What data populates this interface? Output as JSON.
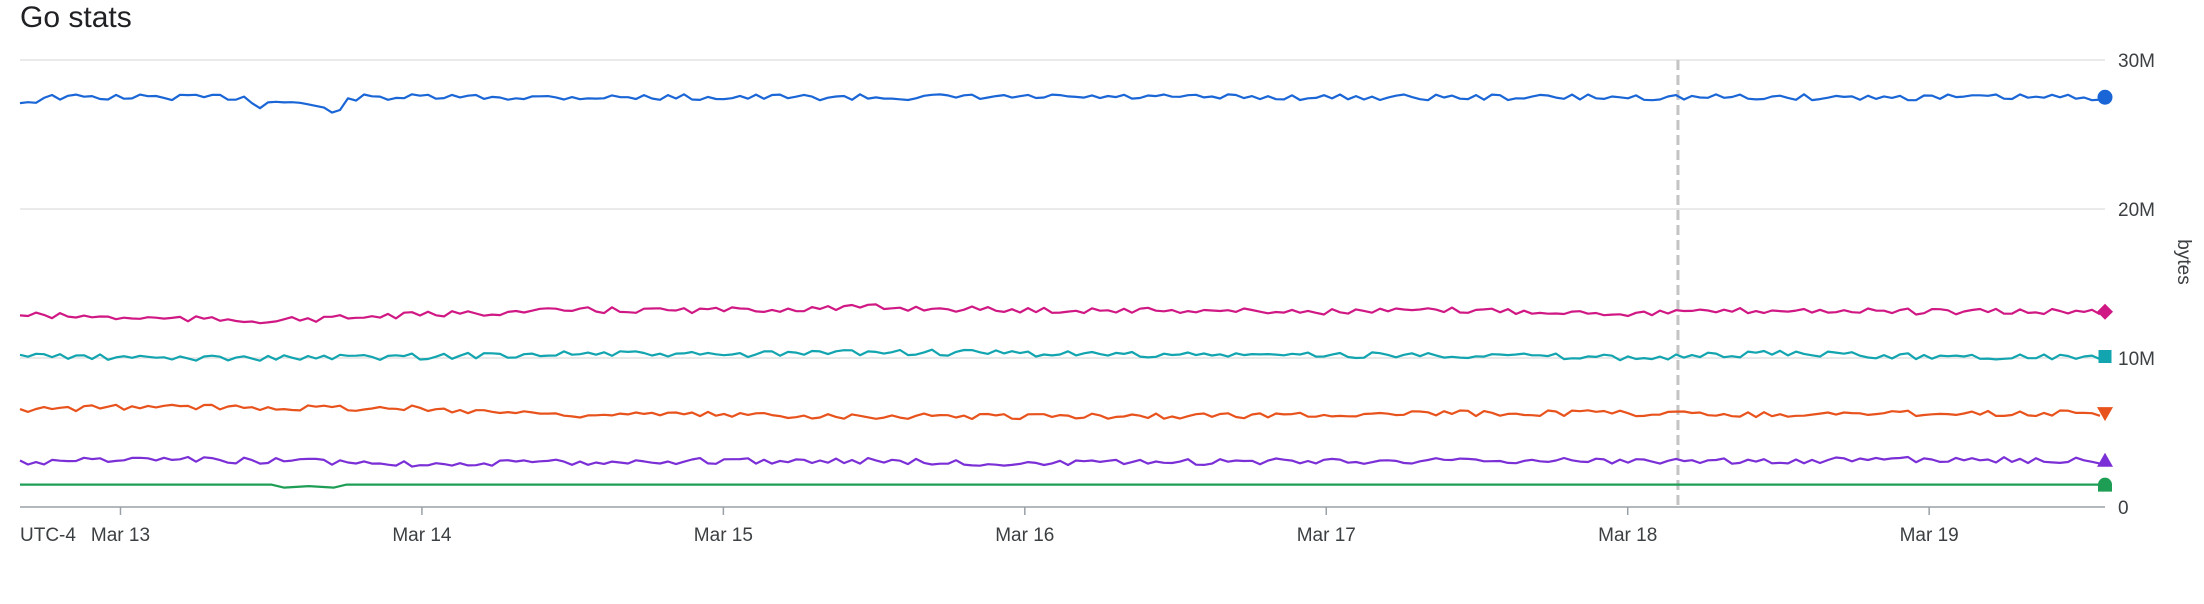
{
  "chart_data": {
    "type": "line",
    "title": "Go stats",
    "ylabel": "bytes",
    "timezone": "UTC-4",
    "ylim": [
      0,
      30000000
    ],
    "yticks": [
      {
        "value": 0,
        "label": "0"
      },
      {
        "value": 10000000,
        "label": "10M"
      },
      {
        "value": 20000000,
        "label": "20M"
      },
      {
        "value": 30000000,
        "label": "30M"
      }
    ],
    "xlim": [
      "2024-03-12T16:00",
      "2024-03-19T14:00"
    ],
    "xticks": [
      {
        "value": "2024-03-13T00:00",
        "label": "Mar 13"
      },
      {
        "value": "2024-03-14T00:00",
        "label": "Mar 14"
      },
      {
        "value": "2024-03-15T00:00",
        "label": "Mar 15"
      },
      {
        "value": "2024-03-16T00:00",
        "label": "Mar 16"
      },
      {
        "value": "2024-03-17T00:00",
        "label": "Mar 17"
      },
      {
        "value": "2024-03-18T00:00",
        "label": "Mar 18"
      },
      {
        "value": "2024-03-19T00:00",
        "label": "Mar 19"
      }
    ],
    "cursor_x": "2024-03-18T04:00",
    "grid": true,
    "series": [
      {
        "color": "#1a66d6",
        "marker": "circle",
        "x": [
          "2024-03-12T16:00",
          "2024-03-12T17:00",
          "2024-03-12T18:00",
          "2024-03-13T10:00",
          "2024-03-13T11:00",
          "2024-03-13T12:00",
          "2024-03-13T14:00",
          "2024-03-13T17:00",
          "2024-03-13T18:00",
          "2024-03-13T19:00",
          "2024-03-13T20:00",
          "2024-03-13T22:00",
          "2024-03-19T14:00"
        ],
        "y": [
          27200000,
          27200000,
          27500000,
          27500000,
          26900000,
          27200000,
          27200000,
          26500000,
          27200000,
          27500000,
          27500000,
          27500000,
          27500000
        ]
      },
      {
        "color": "#d01884",
        "marker": "diamond",
        "x": [
          "2024-03-12T16:00",
          "2024-03-13T00:00",
          "2024-03-13T12:00",
          "2024-03-14T00:00",
          "2024-03-14T12:00",
          "2024-03-15T00:00",
          "2024-03-15T12:00",
          "2024-03-16T00:00",
          "2024-03-16T12:00",
          "2024-03-17T00:00",
          "2024-03-17T12:00",
          "2024-03-18T00:00",
          "2024-03-18T12:00",
          "2024-03-19T00:00",
          "2024-03-19T14:00"
        ],
        "y": [
          12900000,
          12700000,
          12500000,
          12900000,
          13200000,
          13200000,
          13400000,
          13200000,
          13200000,
          13100000,
          13200000,
          13000000,
          13200000,
          13100000,
          13100000
        ]
      },
      {
        "color": "#12a4af",
        "marker": "square",
        "x": [
          "2024-03-12T16:00",
          "2024-03-13T00:00",
          "2024-03-13T12:00",
          "2024-03-14T00:00",
          "2024-03-14T12:00",
          "2024-03-15T00:00",
          "2024-03-15T12:00",
          "2024-03-16T00:00",
          "2024-03-16T12:00",
          "2024-03-17T00:00",
          "2024-03-17T12:00",
          "2024-03-18T00:00",
          "2024-03-18T12:00",
          "2024-03-19T00:00",
          "2024-03-19T14:00"
        ],
        "y": [
          10200000,
          10000000,
          10000000,
          10100000,
          10300000,
          10200000,
          10400000,
          10300000,
          10200000,
          10200000,
          10200000,
          10000000,
          10300000,
          10100000,
          10100000
        ]
      },
      {
        "color": "#e8521c",
        "marker": "triangle-down",
        "x": [
          "2024-03-12T16:00",
          "2024-03-13T00:00",
          "2024-03-13T12:00",
          "2024-03-14T00:00",
          "2024-03-14T12:00",
          "2024-03-15T00:00",
          "2024-03-15T12:00",
          "2024-03-16T00:00",
          "2024-03-16T12:00",
          "2024-03-17T00:00",
          "2024-03-17T12:00",
          "2024-03-18T00:00",
          "2024-03-18T12:00",
          "2024-03-19T00:00",
          "2024-03-19T14:00"
        ],
        "y": [
          6500000,
          6700000,
          6700000,
          6600000,
          6200000,
          6200000,
          6100000,
          6100000,
          6100000,
          6200000,
          6300000,
          6300000,
          6200000,
          6300000,
          6300000
        ]
      },
      {
        "color": "#7b2fd6",
        "marker": "triangle-up",
        "x": [
          "2024-03-12T16:00",
          "2024-03-13T00:00",
          "2024-03-13T12:00",
          "2024-03-14T00:00",
          "2024-03-14T12:00",
          "2024-03-15T00:00",
          "2024-03-15T12:00",
          "2024-03-16T00:00",
          "2024-03-16T12:00",
          "2024-03-17T00:00",
          "2024-03-17T12:00",
          "2024-03-18T00:00",
          "2024-03-18T12:00",
          "2024-03-19T00:00",
          "2024-03-19T14:00"
        ],
        "y": [
          3000000,
          3200000,
          3100000,
          2900000,
          3000000,
          3100000,
          3100000,
          2900000,
          3000000,
          3100000,
          3100000,
          3100000,
          3100000,
          3200000,
          3100000
        ]
      },
      {
        "color": "#1e9e55",
        "marker": "half-circle",
        "x": [
          "2024-03-12T16:00",
          "2024-03-13T12:00",
          "2024-03-13T13:00",
          "2024-03-13T15:00",
          "2024-03-13T17:00",
          "2024-03-13T18:00",
          "2024-03-19T14:00"
        ],
        "y": [
          1500000,
          1500000,
          1300000,
          1400000,
          1300000,
          1500000,
          1500000
        ]
      }
    ]
  }
}
